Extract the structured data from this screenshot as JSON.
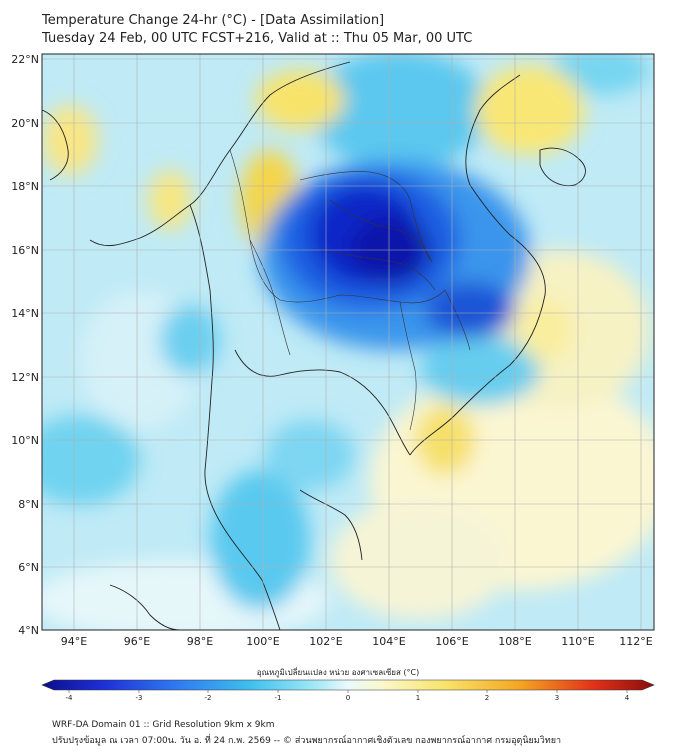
{
  "title": {
    "line1": "Temperature Change 24-hr (°C) - [Data Assimilation]",
    "line2": "Tuesday 24 Feb, 00 UTC FCST+216, Valid at :: Thu 05 Mar, 00 UTC"
  },
  "lat_labels": [
    "22°N",
    "20°N",
    "18°N",
    "16°N",
    "14°N",
    "12°N",
    "10°N",
    "8°N",
    "6°N",
    "4°N"
  ],
  "lon_labels": [
    "94°E",
    "96°E",
    "98°E",
    "100°E",
    "102°E",
    "104°E",
    "106°E",
    "108°E",
    "110°E",
    "112°E"
  ],
  "colorbar": {
    "title": "อุณหภูมิเปลี่ยนแปลง หน่วย องศาเซลเซียส (°C)",
    "ticks": [
      "-4",
      "-3",
      "-2",
      "-1",
      "0",
      "1",
      "2",
      "3",
      "4"
    ],
    "colors": [
      "#0b0f8c",
      "#1e2fd6",
      "#2f7af0",
      "#3fbfee",
      "#9ce6f6",
      "#eaf9fb",
      "#fbf7c8",
      "#f8e36a",
      "#f4a623",
      "#e2321a",
      "#8a0c0c"
    ]
  },
  "footer": {
    "line1": "WRF-DA Domain 01 :: Grid Resolution 9km x 9km",
    "line2": "ปรับปรุงข้อมูล ณ เวลา 07:00น. วัน อ. ที่ 24 ก.พ. 2569 -- © ส่วนพยากรณ์อากาศเชิงตัวเลข กองพยากรณ์อากาศ กรมอุตุนิยมวิทยา"
  }
}
